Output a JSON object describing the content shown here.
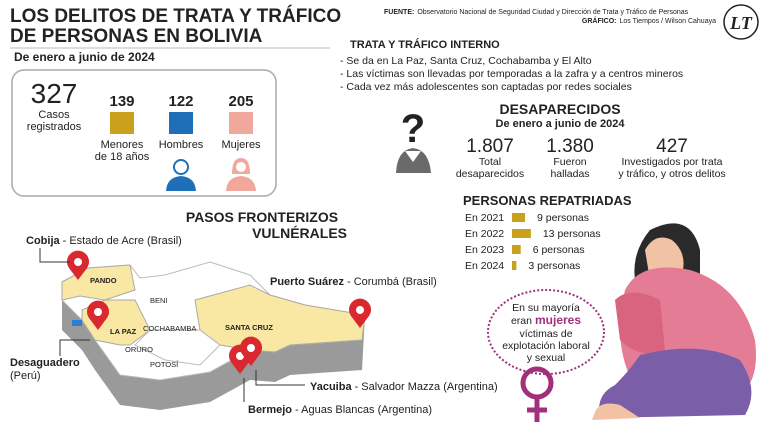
{
  "header": {
    "title_lines": [
      "LOS DELITOS DE TRATA Y TRÁFICO",
      "DE PERSONAS EN BOLIVIA"
    ],
    "period": "De enero a junio de 2024",
    "source_label": "FUENTE:",
    "source": "Observatorio Nacional de Seguridad Ciudad y Dirección de Trata y Tráfico de Personas",
    "credit_label": "GRÁFICO:",
    "credit": "Los Tiempos / Wilson Cahuaya",
    "logo": "LT"
  },
  "cases": {
    "total": "327",
    "total_label": [
      "Casos",
      "registrados"
    ],
    "groups": [
      {
        "value": "139",
        "label": [
          "Menores",
          "de 18 años"
        ],
        "color": "#c9a11d"
      },
      {
        "value": "122",
        "label": [
          "Hombres"
        ],
        "color": "#1f6fb8"
      },
      {
        "value": "205",
        "label": [
          "Mujeres"
        ],
        "color": "#f0a79c"
      }
    ]
  },
  "internal": {
    "title": "TRATA Y TRÁFICO INTERNO",
    "bullets": [
      "- Se da en La Paz, Santa Cruz, Cochabamba y El Alto",
      "- Las víctimas son llevadas por temporadas a la zafra y a centros mineros",
      "- Cada vez más adolescentes son captadas por redes sociales"
    ]
  },
  "missing": {
    "title": "DESAPARECIDOS",
    "period": "De enero a junio de 2024",
    "stats": [
      {
        "value": "1.807",
        "label": [
          "Total",
          "desaparecidos"
        ]
      },
      {
        "value": "1.380",
        "label": [
          "Fueron",
          "halladas"
        ]
      },
      {
        "value": "427",
        "label": [
          "Investigados por trata",
          "y tráfico, y otros delitos"
        ]
      }
    ]
  },
  "repatriated": {
    "title": "PERSONAS REPATRIADAS",
    "color": "#c9a11d",
    "rows": [
      {
        "year": "En 2021",
        "value": 9,
        "value_label": "9 personas"
      },
      {
        "year": "En 2022",
        "value": 13,
        "value_label": "13 personas"
      },
      {
        "year": "En 2023",
        "value": 6,
        "value_label": "6 personas"
      },
      {
        "year": "En 2024",
        "value": 3,
        "value_label": "3 personas"
      }
    ]
  },
  "note": {
    "lines": [
      "En su mayoría",
      "eran",
      "mujeres",
      "víctimas de",
      "explotación laboral",
      "y sexual"
    ]
  },
  "borders": {
    "title_lines": [
      "PASOS FRONTERIZOS",
      "VULNÉRALES"
    ],
    "crossings": [
      {
        "name": "Cobija",
        "place": "- Estado de Acre (Brasil)"
      },
      {
        "name": "Puerto Suárez",
        "place": "- Corumbá (Brasil)"
      },
      {
        "name": "Desaguadero",
        "place": "(Perú)"
      },
      {
        "name": "Yacuiba",
        "place": "- Salvador Mazza (Argentina)"
      },
      {
        "name": "Bermejo",
        "place": "- Aguas Blancas (Argentina)"
      }
    ],
    "regions": [
      "PANDO",
      "BENI",
      "LA PAZ",
      "COCHABAMBA",
      "ORURO",
      "POTOSÍ",
      "SANTA CRUZ"
    ]
  }
}
